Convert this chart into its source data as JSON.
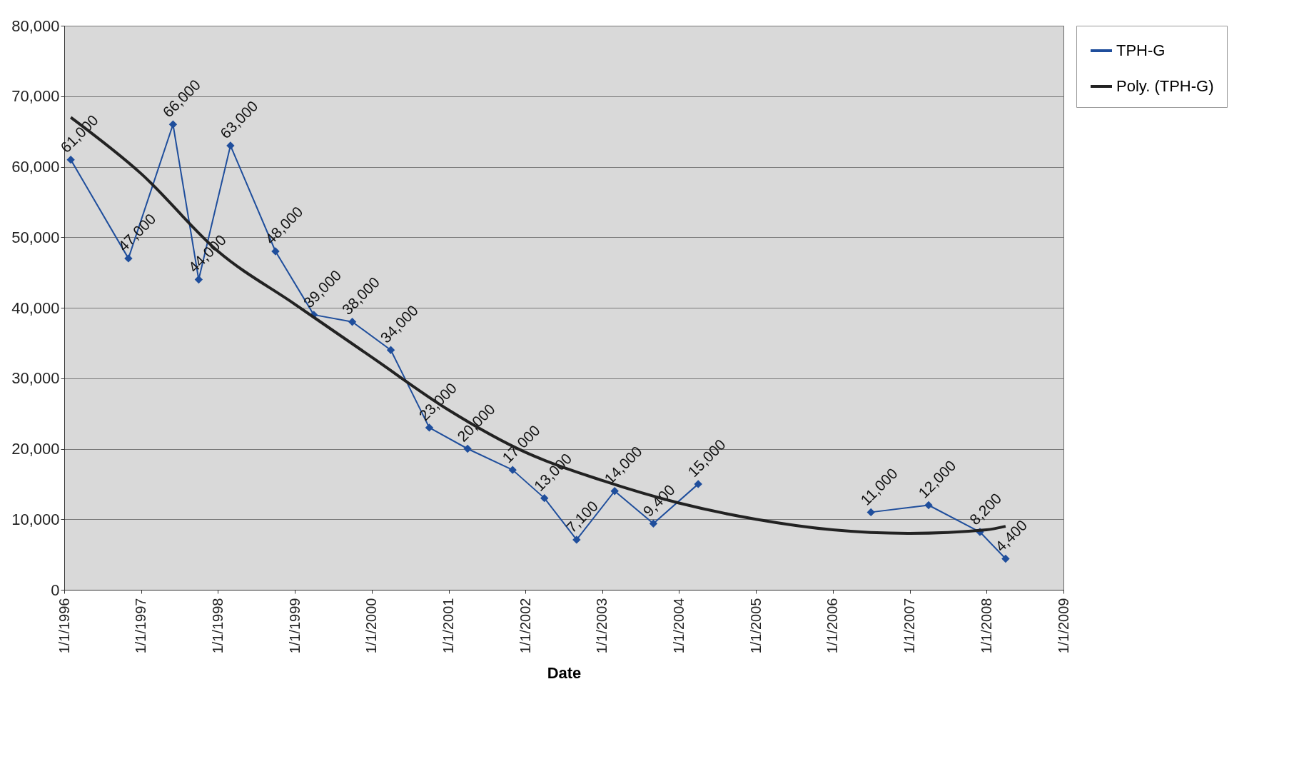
{
  "chart_data": {
    "type": "line",
    "xlabel": "Date",
    "x": [
      "1996-02",
      "1996-11",
      "1997-06",
      "1997-10",
      "1998-03",
      "1998-10",
      "1999-04",
      "1999-10",
      "2000-04",
      "2000-10",
      "2001-04",
      "2001-11",
      "2002-04",
      "2002-09",
      "2003-03",
      "2003-09",
      "2004-04",
      "2005-06",
      "2006-07",
      "2007-04",
      "2007-12",
      "2008-04"
    ],
    "series": [
      {
        "name": "TPH-G",
        "color": "#1f4e9c",
        "marker": "diamond",
        "values": [
          61000,
          47000,
          66000,
          44000,
          63000,
          48000,
          39000,
          38000,
          34000,
          23000,
          20000,
          17000,
          13000,
          7100,
          14000,
          9400,
          15000,
          null,
          11000,
          12000,
          8200,
          4400
        ],
        "value_labels": [
          "61,000",
          "47,000",
          "66,000",
          "44,000",
          "63,000",
          "48,000",
          "39,000",
          "38,000",
          "34,000",
          "23,000",
          "20,000",
          "17,000",
          "13,000",
          "7,100",
          "14,000",
          "9,400",
          "15,000",
          null,
          "11,000",
          "12,000",
          "8,200",
          "4,400"
        ]
      },
      {
        "name": "Poly. (TPH-G)",
        "type": "line",
        "color": "#222222",
        "marker": "none",
        "x": [
          "1996-02",
          "1997-01",
          "1998-01",
          "1999-01",
          "2000-01",
          "2001-01",
          "2002-01",
          "2003-01",
          "2004-01",
          "2005-01",
          "2006-01",
          "2007-01",
          "2008-01",
          "2008-04"
        ],
        "values": [
          67000,
          59000,
          48000,
          40500,
          33000,
          25500,
          19500,
          15500,
          12300,
          10000,
          8500,
          8000,
          8500,
          9000
        ]
      }
    ],
    "grid": "y",
    "legend": "right",
    "line_style": "solid",
    "xlim": [
      "1996-01-01",
      "2009-01-01"
    ],
    "xticks": [
      {
        "value": "1996-01-01",
        "label": "1/1/1996"
      },
      {
        "value": "1997-01-01",
        "label": "1/1/1997"
      },
      {
        "value": "1998-01-01",
        "label": "1/1/1998"
      },
      {
        "value": "1999-01-01",
        "label": "1/1/1999"
      },
      {
        "value": "2000-01-01",
        "label": "1/1/2000"
      },
      {
        "value": "2001-01-01",
        "label": "1/1/2001"
      },
      {
        "value": "2002-01-01",
        "label": "1/1/2002"
      },
      {
        "value": "2003-01-01",
        "label": "1/1/2003"
      },
      {
        "value": "2004-01-01",
        "label": "1/1/2004"
      },
      {
        "value": "2005-01-01",
        "label": "1/1/2005"
      },
      {
        "value": "2006-01-01",
        "label": "1/1/2006"
      },
      {
        "value": "2007-01-01",
        "label": "1/1/2007"
      },
      {
        "value": "2008-01-01",
        "label": "1/1/2008"
      },
      {
        "value": "2009-01-01",
        "label": "1/1/2009"
      }
    ],
    "ylim": [
      0,
      80000
    ],
    "yticks": [
      0,
      {
        "value": 10000,
        "label": "10,000"
      },
      {
        "value": 20000,
        "label": "20,000"
      },
      {
        "value": 30000,
        "label": "30,000"
      },
      {
        "value": 40000,
        "label": "40,000"
      },
      {
        "value": 50000,
        "label": "50,000"
      },
      {
        "value": 60000,
        "label": "60,000"
      },
      {
        "value": 70000,
        "label": "70,000"
      },
      {
        "value": 80000,
        "label": "80,000"
      }
    ]
  }
}
